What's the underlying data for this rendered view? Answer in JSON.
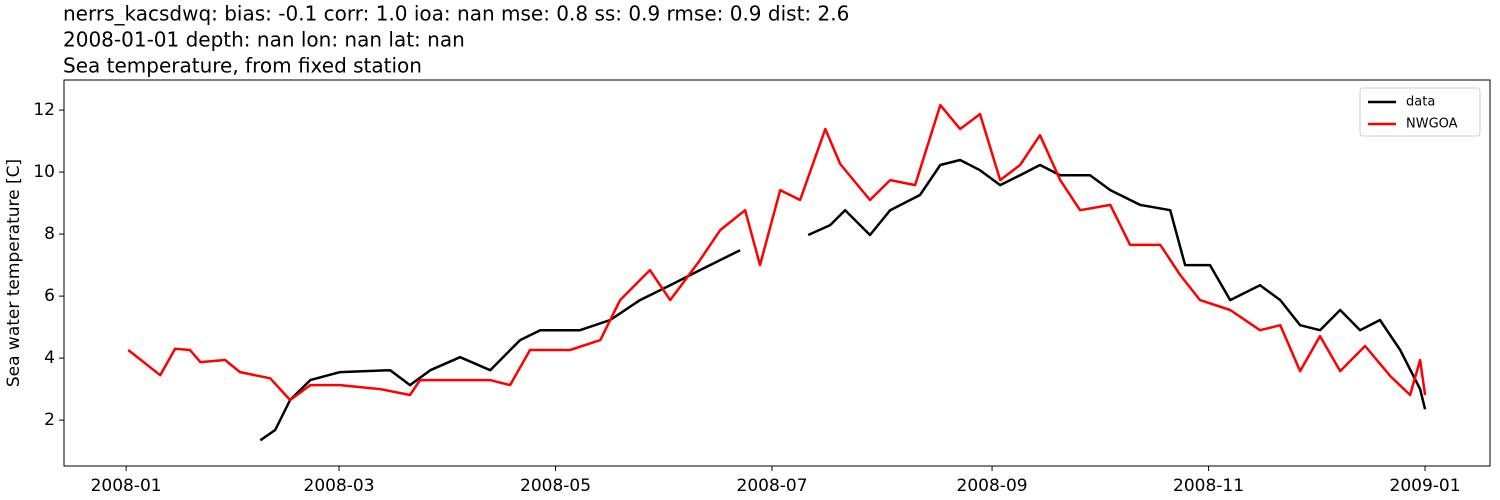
{
  "chart_data": {
    "type": "line",
    "title_lines": [
      "nerrs_kacsdwq: bias: -0.1  corr: 1.0  ioa: nan  mse: 0.8  ss: 0.9  rmse: 0.9  dist: 2.6",
      "2008-01-01 depth: nan lon: nan lat: nan",
      "Sea temperature, from fixed station"
    ],
    "y_label": "Sea water temperature [C]",
    "xlim": [
      -17.5,
      384.3
    ],
    "xticks": [
      {
        "value": 0,
        "label": "2008-01"
      },
      {
        "value": 60,
        "label": "2008-03"
      },
      {
        "value": 121,
        "label": "2008-05"
      },
      {
        "value": 182,
        "label": "2008-07"
      },
      {
        "value": 244,
        "label": "2008-09"
      },
      {
        "value": 305,
        "label": "2008-11"
      },
      {
        "value": 366,
        "label": "2009-01"
      }
    ],
    "ylim": [
      0.52,
      12.97
    ],
    "yticks": [
      2,
      4,
      6,
      8,
      10,
      12
    ],
    "grid": false,
    "legend": "upper right",
    "series": [
      {
        "name": "data",
        "color": "#000000",
        "x": [
          37.8,
          42,
          46.2,
          51.9,
          60.3,
          74.4,
          80,
          85.7,
          94.1,
          102.6,
          111,
          116.7,
          127.9,
          136.4,
          144.8,
          153.3,
          161.7,
          173,
          180,
          192.2,
          198.4,
          202.6,
          209.6,
          215.3,
          223.7,
          229.4,
          235,
          240.6,
          246.3,
          251.9,
          257.5,
          263.2,
          271.6,
          277.3,
          285.7,
          294.2,
          298.4,
          305.4,
          311.1,
          319.5,
          325.2,
          330.8,
          336.4,
          342.1,
          347.7,
          353.3,
          359,
          364.6,
          366
        ],
        "values": [
          1.35,
          1.68,
          2.65,
          3.29,
          3.55,
          3.61,
          3.13,
          3.61,
          4.03,
          3.61,
          4.58,
          4.9,
          4.9,
          5.23,
          5.87,
          6.35,
          6.84,
          7.48,
          null,
          7.97,
          8.29,
          8.77,
          7.97,
          8.77,
          9.26,
          10.23,
          10.39,
          10.06,
          9.58,
          9.9,
          10.23,
          9.9,
          9.9,
          9.42,
          8.94,
          8.77,
          7.0,
          7.0,
          5.87,
          6.35,
          5.87,
          5.06,
          4.9,
          5.55,
          4.9,
          5.23,
          4.26,
          3.0,
          2.35
        ]
      },
      {
        "name": "NWGOA",
        "color": "#ff0000",
        "x": [
          0.6,
          9.6,
          13.8,
          18,
          20.9,
          27.9,
          32.1,
          40.6,
          46.2,
          51.9,
          60.3,
          71.6,
          80,
          82.8,
          91.3,
          102.6,
          108.2,
          113.8,
          125.1,
          133.6,
          139.2,
          147.6,
          153.3,
          161.7,
          167.4,
          174.4,
          178.6,
          184.3,
          189.9,
          197,
          201.2,
          209.6,
          215.3,
          222.3,
          229.4,
          235,
          240.6,
          246.3,
          251.9,
          257.5,
          263.2,
          268.8,
          277.3,
          282.9,
          291.4,
          297,
          302.6,
          311.1,
          319.5,
          325.2,
          330.8,
          336.4,
          342.1,
          349.1,
          356.2,
          361.8,
          364.6,
          366
        ],
        "values": [
          4.26,
          3.45,
          4.3,
          4.26,
          3.87,
          3.94,
          3.55,
          3.35,
          2.65,
          3.13,
          3.13,
          3.0,
          2.81,
          3.29,
          3.29,
          3.29,
          3.13,
          4.26,
          4.26,
          4.58,
          5.87,
          6.84,
          5.87,
          7.16,
          8.13,
          8.77,
          7.0,
          9.42,
          9.1,
          11.39,
          10.26,
          9.1,
          9.74,
          9.58,
          12.16,
          11.39,
          11.87,
          9.74,
          10.23,
          11.19,
          9.74,
          8.77,
          8.94,
          7.65,
          7.65,
          6.68,
          5.87,
          5.55,
          4.9,
          5.06,
          3.58,
          4.71,
          3.58,
          4.39,
          3.42,
          2.81,
          3.94,
          2.81
        ]
      }
    ]
  }
}
